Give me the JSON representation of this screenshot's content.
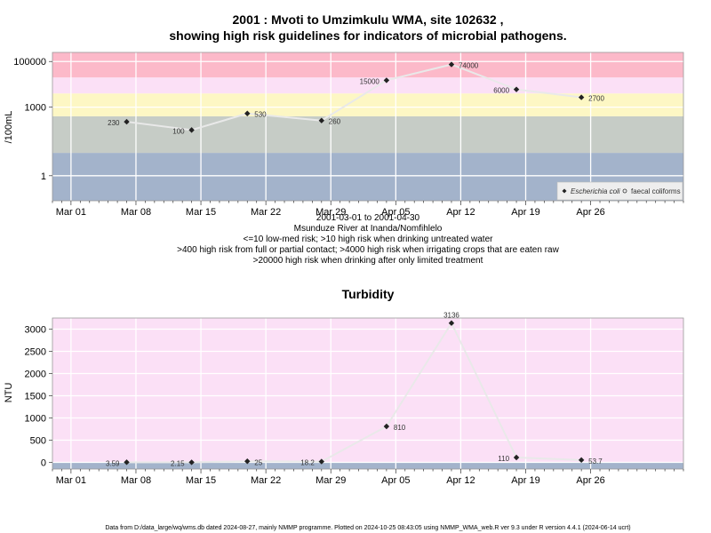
{
  "chart_data": [
    {
      "type": "line",
      "title_line1": "2001 : Mvoti to Umzimkulu WMA, site 102632 ,",
      "title_line2": "showing high risk guidelines for indicators of microbial pathogens.",
      "ylabel": "/100mL",
      "y_scale": "log",
      "ylim": [
        0.08,
        250000
      ],
      "y_ticks": [
        1,
        1000,
        100000
      ],
      "x_ticks": [
        "Mar 01",
        "Mar 08",
        "Mar 15",
        "Mar 22",
        "Mar 29",
        "Apr 05",
        "Apr 12",
        "Apr 19",
        "Apr 26"
      ],
      "xlim": [
        "2001-02-27",
        "2001-05-06"
      ],
      "grid": true,
      "risk_bands": [
        {
          "from": 0.08,
          "to": 10,
          "color": "#a3b3cb"
        },
        {
          "from": 10,
          "to": 400,
          "color": "#c6ccc6"
        },
        {
          "from": 400,
          "to": 4000,
          "color": "#fdf7c4"
        },
        {
          "from": 4000,
          "to": 20000,
          "color": "#fbe0f6"
        },
        {
          "from": 20000,
          "to": 250000,
          "color": "#fcb9c9"
        }
      ],
      "series": [
        {
          "name": "Escherichia coli",
          "x": [
            "2001-03-07",
            "2001-03-14",
            "2001-03-20",
            "2001-03-28",
            "2001-04-04",
            "2001-04-11",
            "2001-04-18",
            "2001-04-25"
          ],
          "values": [
            230,
            100,
            530,
            260,
            15000,
            74000,
            6000,
            2700
          ],
          "labels": [
            "230",
            "100",
            "530",
            "260",
            "15000",
            "74000",
            "6000",
            "2700"
          ]
        }
      ],
      "legend": {
        "position": "bottom-right",
        "entries": [
          "Escherichia coli",
          "faecal coliforms"
        ]
      },
      "caption": [
        "2001-03-01 to 2001-04-30",
        "Msunduze River at Inanda/Nomfihlelo",
        "<=10 low-med risk; >10 high risk when drinking untreated water",
        ">400 high risk from full or partial contact; >4000 high risk when irrigating crops that are eaten raw",
        ">20000 high risk when drinking after only limited treatment"
      ]
    },
    {
      "type": "line",
      "title": "Turbidity",
      "ylabel": "NTU",
      "ylim": [
        -150,
        3250
      ],
      "y_ticks": [
        0,
        500,
        1000,
        1500,
        2000,
        2500,
        3000
      ],
      "x_ticks": [
        "Mar 01",
        "Mar 08",
        "Mar 15",
        "Mar 22",
        "Mar 29",
        "Apr 05",
        "Apr 12",
        "Apr 19",
        "Apr 26"
      ],
      "xlim": [
        "2001-02-27",
        "2001-05-06"
      ],
      "grid": true,
      "bands": [
        {
          "from": -150,
          "to": 0,
          "color": "#a3b3cb"
        },
        {
          "from": 0,
          "to": 3250,
          "color": "#fbe0f6"
        }
      ],
      "series": [
        {
          "name": "Turbidity",
          "x": [
            "2001-03-07",
            "2001-03-14",
            "2001-03-20",
            "2001-03-28",
            "2001-04-04",
            "2001-04-11",
            "2001-04-18",
            "2001-04-25"
          ],
          "values": [
            3.59,
            2.15,
            25,
            18.2,
            810,
            3136,
            110,
            53.7
          ],
          "labels": [
            "3.59",
            "2.15",
            "25",
            "18.2",
            "810",
            "3136",
            "110",
            "53.7"
          ]
        }
      ]
    }
  ],
  "footer": "Data from D:/data_large/wq/wms.db dated 2024-08-27, mainly NMMP programme. Plotted on 2024-10-25 08:43:05 using NMMP_WMA_web.R ver 9.3 under R version 4.4.1 (2024-06-14 ucrt)"
}
